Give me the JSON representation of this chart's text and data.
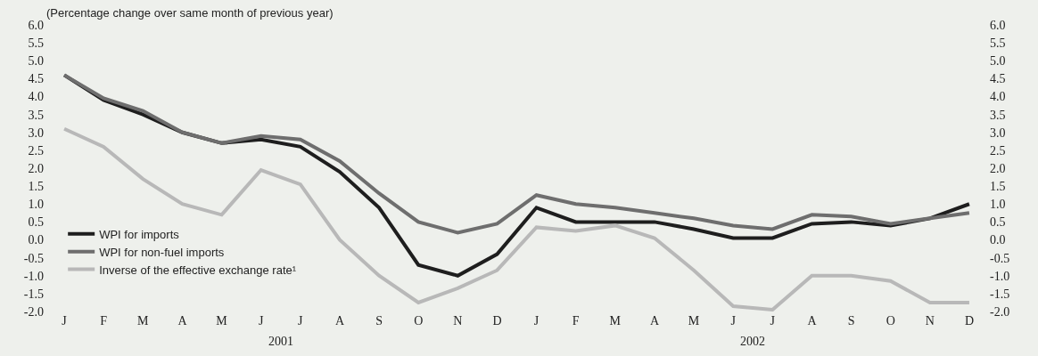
{
  "chart_data": {
    "type": "line",
    "subtitle": "(Percentage change over same month of previous year)",
    "categories": [
      "J",
      "F",
      "M",
      "A",
      "M",
      "J",
      "J",
      "A",
      "S",
      "O",
      "N",
      "D",
      "J",
      "F",
      "M",
      "A",
      "M",
      "J",
      "J",
      "A",
      "S",
      "O",
      "N",
      "D"
    ],
    "series": [
      {
        "name": "WPI for imports",
        "color": "#1e1e1e",
        "values": [
          4.6,
          3.9,
          3.5,
          3.0,
          2.7,
          2.8,
          2.6,
          1.9,
          0.9,
          -0.7,
          -1.0,
          -0.4,
          0.9,
          0.5,
          0.5,
          0.5,
          0.3,
          0.05,
          0.05,
          0.45,
          0.5,
          0.4,
          0.6,
          1.0
        ]
      },
      {
        "name": "WPI for non-fuel imports",
        "color": "#6e6e6e",
        "values": [
          4.6,
          3.95,
          3.6,
          3.0,
          2.7,
          2.9,
          2.8,
          2.2,
          1.3,
          0.5,
          0.2,
          0.45,
          1.25,
          1.0,
          0.9,
          0.75,
          0.6,
          0.4,
          0.3,
          0.7,
          0.65,
          0.45,
          0.6,
          0.75
        ]
      },
      {
        "name": "Inverse of the effective exchange rate¹",
        "color": "#b8b8b8",
        "values": [
          3.1,
          2.6,
          1.7,
          1.0,
          0.7,
          1.95,
          1.55,
          0.0,
          -1.0,
          -1.75,
          -1.35,
          -0.85,
          0.35,
          0.25,
          0.4,
          0.05,
          -0.85,
          -1.85,
          -1.95,
          -1.0,
          -1.0,
          -1.15,
          -1.75,
          -1.75
        ]
      }
    ],
    "ylim": [
      -2.0,
      6.0
    ],
    "yticks": [
      {
        "value": -2.0,
        "label": "-2.0"
      },
      {
        "value": -1.5,
        "label": "-1.5"
      },
      {
        "value": -1.0,
        "label": "-1.0"
      },
      {
        "value": -0.5,
        "label": "-0.5"
      },
      {
        "value": 0.0,
        "label": "0.0"
      },
      {
        "value": 0.5,
        "label": "0.5"
      },
      {
        "value": 1.0,
        "label": "1.0"
      },
      {
        "value": 1.5,
        "label": "1.5"
      },
      {
        "value": 2.0,
        "label": "2.0"
      },
      {
        "value": 2.5,
        "label": "2.5"
      },
      {
        "value": 3.0,
        "label": "3.0"
      },
      {
        "value": 3.5,
        "label": "3.5"
      },
      {
        "value": 4.0,
        "label": "4.0"
      },
      {
        "value": 4.5,
        "label": "4.5"
      },
      {
        "value": 5.0,
        "label": "5.0"
      },
      {
        "value": 5.5,
        "label": "5.5"
      },
      {
        "value": 6.0,
        "label": "6.0"
      }
    ],
    "y2lim": [
      -2.0,
      6.0
    ],
    "y2ticks": [
      {
        "value": -2.0,
        "label": "-2.0"
      },
      {
        "value": -1.5,
        "label": "-1.5"
      },
      {
        "value": -1.0,
        "label": "-1.0"
      },
      {
        "value": -0.5,
        "label": "-0.5"
      },
      {
        "value": 0.0,
        "label": "0.0"
      },
      {
        "value": 0.5,
        "label": "0.5"
      },
      {
        "value": 1.0,
        "label": "1.0"
      },
      {
        "value": 1.5,
        "label": "1.5"
      },
      {
        "value": 2.0,
        "label": "2.0"
      },
      {
        "value": 2.5,
        "label": "2.5"
      },
      {
        "value": 3.0,
        "label": "3.0"
      },
      {
        "value": 3.5,
        "label": "3.5"
      },
      {
        "value": 4.0,
        "label": "4.0"
      },
      {
        "value": 4.5,
        "label": "4.5"
      },
      {
        "value": 5.0,
        "label": "5.0"
      },
      {
        "value": 5.5,
        "label": "5.5"
      },
      {
        "value": 6.0,
        "label": "6.0"
      }
    ],
    "annotations": [
      "2001",
      "2002"
    ],
    "grid": false,
    "legend": "bottom left",
    "marker": "none",
    "line_style": "solid"
  }
}
